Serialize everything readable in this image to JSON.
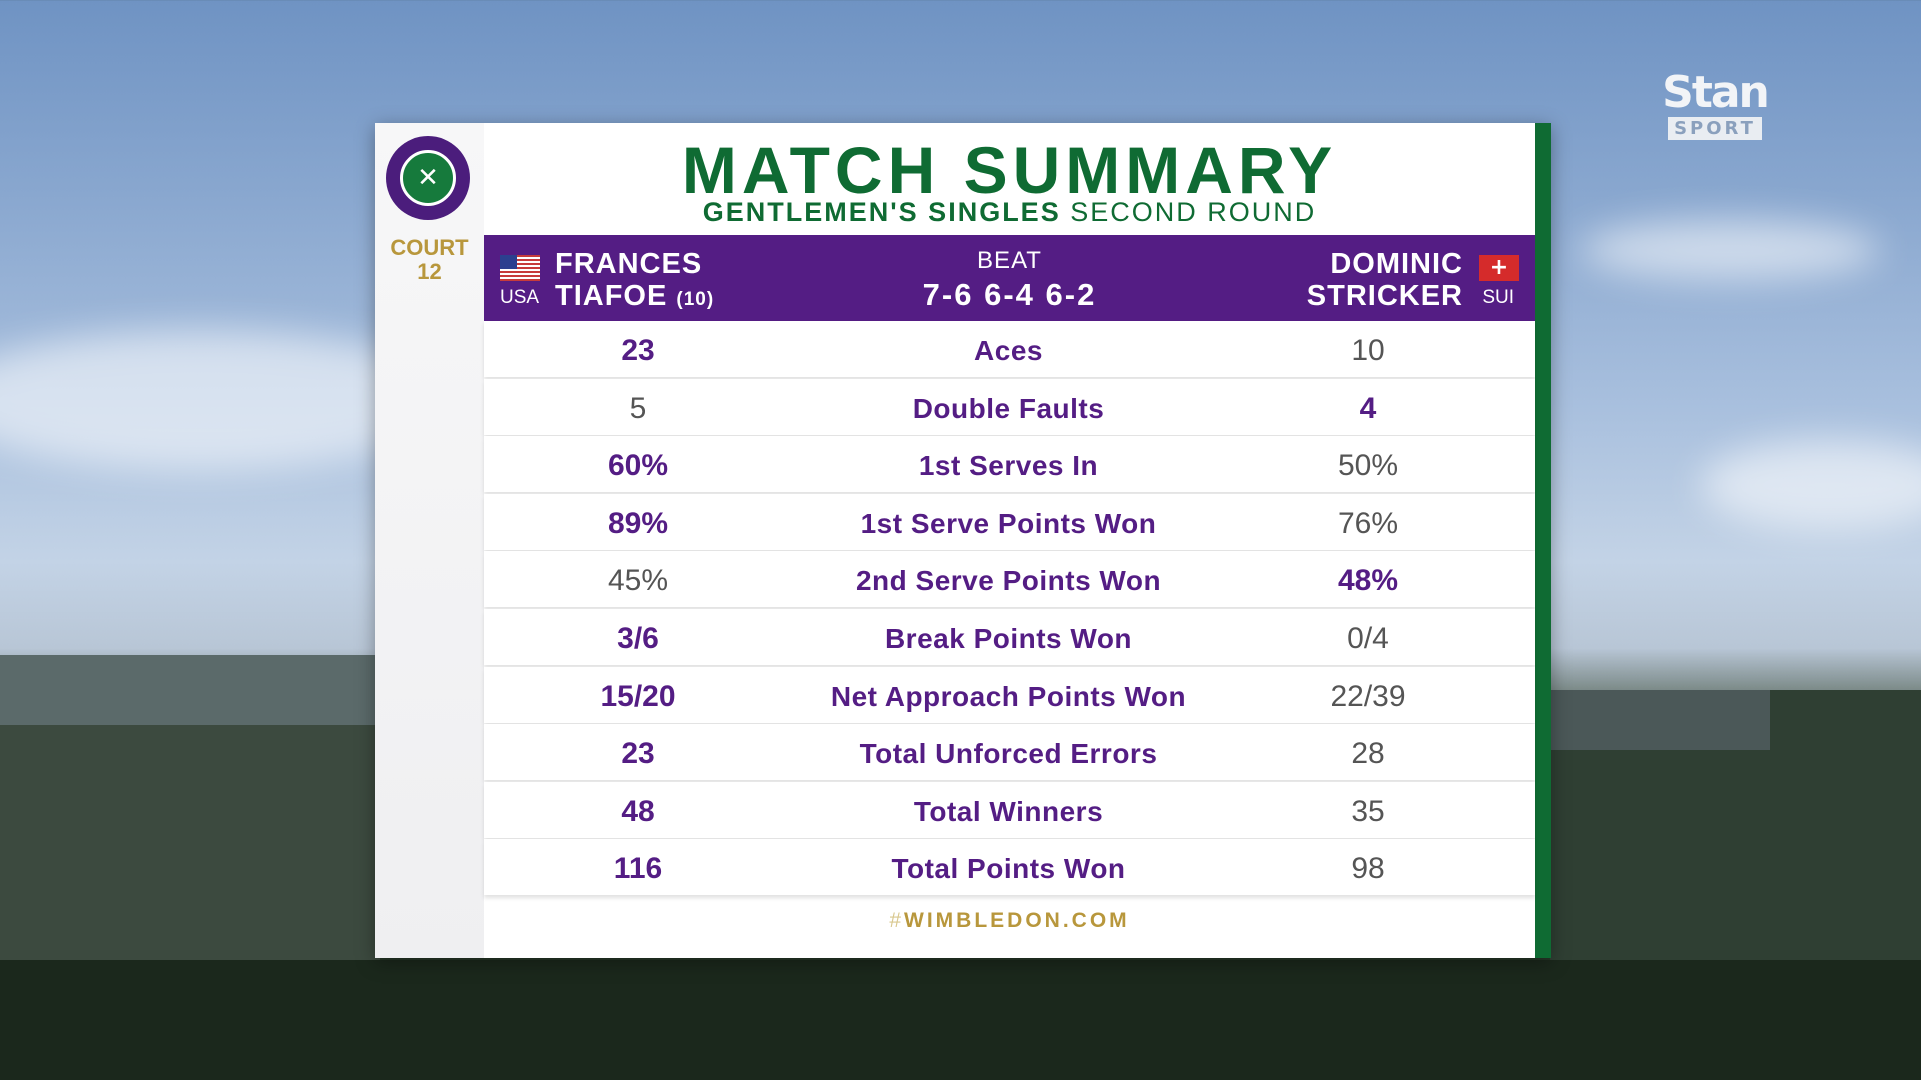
{
  "broadcaster": {
    "name": "Stan",
    "sub": "SPORT"
  },
  "card": {
    "title": "MATCH SUMMARY",
    "subtitle_bold": "GENTLEMEN'S SINGLES",
    "subtitle_light": "SECOND ROUND",
    "court_label": "COURT",
    "court_number": "12",
    "footer_hash": "#",
    "footer_site": "WIMBLEDON.COM"
  },
  "match": {
    "left": {
      "first": "FRANCES",
      "last": "TIAFOE",
      "seed": "(10)",
      "country": "USA"
    },
    "right": {
      "first": "DOMINIC",
      "last": "STRICKER",
      "country": "SUI"
    },
    "result_word": "BEAT",
    "score": "7-6 6-4 6-2"
  },
  "stats": [
    {
      "label": "Aces",
      "left": "23",
      "right": "10",
      "winner": "left"
    },
    {
      "label": "Double Faults",
      "left": "5",
      "right": "4",
      "winner": "right"
    },
    {
      "label": "1st Serves In",
      "left": "60%",
      "right": "50%",
      "winner": "left"
    },
    {
      "label": "1st Serve Points Won",
      "left": "89%",
      "right": "76%",
      "winner": "left"
    },
    {
      "label": "2nd Serve Points Won",
      "left": "45%",
      "right": "48%",
      "winner": "right"
    },
    {
      "label": "Break Points Won",
      "left": "3/6",
      "right": "0/4",
      "winner": "left"
    },
    {
      "label": "Net Approach Points Won",
      "left": "15/20",
      "right": "22/39",
      "winner": "left"
    },
    {
      "label": "Total Unforced Errors",
      "left": "23",
      "right": "28",
      "winner": "left"
    },
    {
      "label": "Total Winners",
      "left": "48",
      "right": "35",
      "winner": "left"
    },
    {
      "label": "Total Points Won",
      "left": "116",
      "right": "98",
      "winner": "left"
    }
  ],
  "colors": {
    "purple": "#541d84",
    "green": "#0f6b33",
    "gold": "#b8973c"
  }
}
